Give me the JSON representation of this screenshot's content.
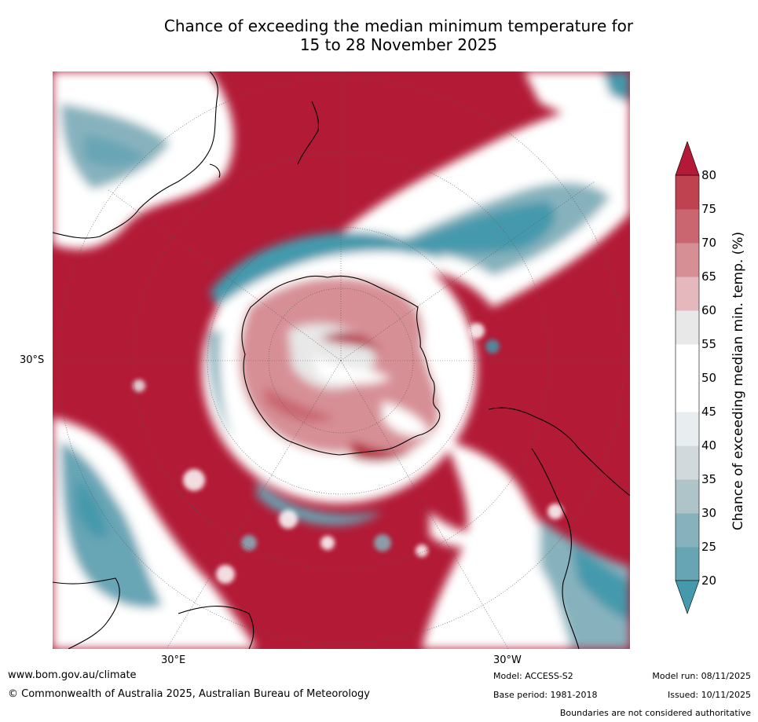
{
  "title_line1": "Chance of exceeding the median minimum temperature for",
  "title_line2": "15 to 28 November 2025",
  "map": {
    "lat_labels": [
      "30°S"
    ],
    "lon_labels": [
      "30°E",
      "30°W"
    ],
    "colors": {
      "strong_warm": "#b21a36",
      "warm_75": "#be4250",
      "warm_70": "#c9666f",
      "warm_65": "#d78f96",
      "warm_60": "#e4b8bc",
      "neutral_55": "#e8e8e8",
      "neutral_50": "#ffffff",
      "cool_40": "#d2d9dc",
      "cool_35": "#aec4c9",
      "cool_30": "#87b2bd",
      "cool_25": "#67a5b5",
      "strong_cool": "#4499ac",
      "land_outline": "#000000",
      "grid": "#555555"
    }
  },
  "colorbar": {
    "label": "Chance of exceeding median min. temp. (%)",
    "ticks": [
      "80",
      "75",
      "70",
      "65",
      "60",
      "55",
      "50",
      "45",
      "40",
      "35",
      "30",
      "25",
      "20"
    ],
    "colors": [
      "#4499ac",
      "#67a5b5",
      "#87b2bd",
      "#aec4c9",
      "#d2d9dc",
      "#e8edf0",
      "#ffffff",
      "#ffffff",
      "#e8e8e8",
      "#e4b8bc",
      "#d78f96",
      "#c9666f",
      "#be4250",
      "#b21a36"
    ]
  },
  "footer": {
    "url": "www.bom.gov.au/climate",
    "copyright": "© Commonwealth of Australia 2025, Australian Bureau of Meteorology",
    "model": "Model: ACCESS-S2",
    "base_period": "Base period: 1981-2018",
    "model_run": "Model run: 08/11/2025",
    "issued": "Issued: 10/11/2025",
    "disclaimer": "Boundaries are not considered authoritative"
  }
}
